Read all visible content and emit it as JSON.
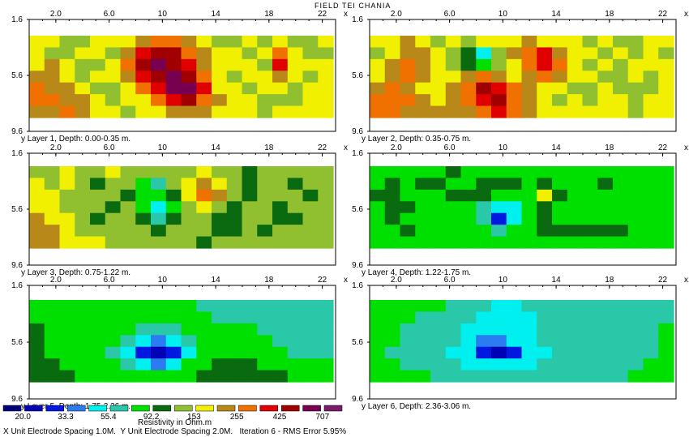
{
  "figure_title": "FIELD TEI CHANIA",
  "axis_letter_x": "x",
  "axis_letter_y": "y",
  "footer": {
    "x_spacing": "X Unit Electrode Spacing 1.0M.",
    "y_spacing": "Y Unit Electrode Spacing 2.0M.",
    "iteration": "Iteration 6 - RMS Error 5.95%"
  },
  "legend": {
    "units_label": "Resistivity in Ohm.m",
    "swatch_colors": [
      "#00007a",
      "#0000b4",
      "#0018e0",
      "#2a7cf0",
      "#00f0f0",
      "#28c8a8",
      "#00e000",
      "#0a6a10",
      "#90c030",
      "#f0f000",
      "#b88818",
      "#f07000",
      "#e00000",
      "#a00000",
      "#780050",
      "#7a1a6a"
    ],
    "tick_labels": [
      "20.0",
      "33.3",
      "55.4",
      "92.2",
      "153",
      "255",
      "425",
      "707"
    ]
  },
  "chart_data": [
    {
      "type": "heatmap",
      "caption": "Layer 1, Depth: 0.00-0.35 m.",
      "x_ticks": [
        "2.0",
        "6.0",
        "10",
        "14",
        "18",
        "22"
      ],
      "y_ticks": [
        "1.6",
        "5.6",
        "9.6"
      ],
      "x_range": [
        0,
        23
      ],
      "y_range": [
        1.6,
        9.6
      ],
      "grid": [
        [
          9,
          9,
          8,
          8,
          9,
          9,
          9,
          10,
          11,
          11,
          10,
          9,
          8,
          8,
          9,
          8,
          9,
          8,
          8,
          9
        ],
        [
          9,
          8,
          8,
          9,
          9,
          8,
          10,
          12,
          13,
          13,
          11,
          10,
          9,
          9,
          8,
          9,
          11,
          9,
          8,
          8
        ],
        [
          9,
          10,
          9,
          8,
          8,
          9,
          11,
          13,
          14,
          13,
          12,
          10,
          9,
          9,
          9,
          8,
          12,
          9,
          9,
          9
        ],
        [
          10,
          10,
          9,
          8,
          9,
          9,
          10,
          12,
          13,
          14,
          13,
          11,
          9,
          8,
          9,
          9,
          10,
          9,
          8,
          9
        ],
        [
          11,
          10,
          10,
          9,
          8,
          8,
          9,
          11,
          12,
          14,
          14,
          12,
          9,
          9,
          8,
          9,
          9,
          8,
          9,
          9
        ],
        [
          11,
          11,
          10,
          10,
          9,
          8,
          9,
          9,
          11,
          12,
          13,
          11,
          10,
          9,
          9,
          8,
          8,
          8,
          9,
          9
        ],
        [
          10,
          10,
          11,
          10,
          9,
          9,
          8,
          9,
          9,
          10,
          10,
          10,
          9,
          9,
          9,
          8,
          9,
          9,
          9,
          9
        ]
      ]
    },
    {
      "type": "heatmap",
      "caption": "Layer 2, Depth: 0.35-0.75 m.",
      "x_ticks": [
        "2.0",
        "6.0",
        "10",
        "14",
        "18",
        "22"
      ],
      "y_ticks": [
        "1.6",
        "5.6",
        "9.6"
      ],
      "x_range": [
        0,
        23
      ],
      "y_range": [
        1.6,
        9.6
      ],
      "grid": [
        [
          9,
          9,
          10,
          9,
          8,
          9,
          8,
          9,
          9,
          9,
          10,
          9,
          9,
          9,
          8,
          9,
          8,
          8,
          9,
          9
        ],
        [
          8,
          9,
          10,
          10,
          9,
          8,
          7,
          4,
          8,
          10,
          11,
          12,
          10,
          9,
          9,
          8,
          9,
          8,
          9,
          8
        ],
        [
          9,
          10,
          11,
          10,
          9,
          8,
          7,
          6,
          8,
          9,
          11,
          12,
          11,
          9,
          8,
          9,
          8,
          9,
          9,
          9
        ],
        [
          9,
          10,
          11,
          10,
          9,
          9,
          10,
          11,
          10,
          9,
          10,
          11,
          10,
          9,
          9,
          8,
          8,
          9,
          8,
          9
        ],
        [
          10,
          11,
          10,
          9,
          9,
          10,
          11,
          13,
          12,
          11,
          10,
          9,
          9,
          8,
          8,
          9,
          8,
          8,
          8,
          9
        ],
        [
          11,
          11,
          11,
          10,
          9,
          10,
          11,
          12,
          13,
          11,
          10,
          9,
          8,
          9,
          8,
          9,
          9,
          8,
          9,
          9
        ],
        [
          11,
          11,
          10,
          10,
          10,
          10,
          10,
          11,
          12,
          11,
          10,
          9,
          9,
          9,
          9,
          9,
          9,
          8,
          9,
          9
        ]
      ]
    },
    {
      "type": "heatmap",
      "caption": "Layer 3, Depth: 0.75-1.22 m.",
      "x_ticks": [
        "2.0",
        "6.0",
        "10",
        "14",
        "18",
        "22"
      ],
      "y_ticks": [
        "1.6",
        "5.6",
        "9.6"
      ],
      "x_range": [
        0,
        23
      ],
      "y_range": [
        1.6,
        9.6
      ],
      "grid": [
        [
          8,
          8,
          9,
          8,
          8,
          9,
          8,
          8,
          8,
          8,
          8,
          9,
          8,
          8,
          7,
          8,
          8,
          8,
          8,
          8
        ],
        [
          9,
          8,
          9,
          8,
          7,
          8,
          8,
          6,
          5,
          8,
          9,
          10,
          9,
          8,
          7,
          8,
          8,
          7,
          8,
          8
        ],
        [
          9,
          9,
          8,
          8,
          8,
          8,
          7,
          6,
          6,
          7,
          9,
          11,
          10,
          8,
          7,
          8,
          8,
          8,
          7,
          8
        ],
        [
          9,
          9,
          8,
          8,
          8,
          7,
          8,
          6,
          4,
          6,
          8,
          9,
          8,
          7,
          8,
          8,
          7,
          8,
          8,
          8
        ],
        [
          10,
          9,
          9,
          8,
          7,
          8,
          8,
          7,
          5,
          7,
          8,
          8,
          7,
          7,
          8,
          8,
          7,
          7,
          8,
          8
        ],
        [
          10,
          10,
          9,
          8,
          8,
          8,
          8,
          8,
          7,
          8,
          8,
          8,
          7,
          7,
          8,
          7,
          8,
          8,
          8,
          8
        ],
        [
          10,
          10,
          9,
          9,
          9,
          8,
          8,
          8,
          8,
          8,
          8,
          7,
          8,
          8,
          8,
          8,
          8,
          8,
          8,
          8
        ]
      ]
    },
    {
      "type": "heatmap",
      "caption": "Layer 4, Depth: 1.22-1.75 m.",
      "x_ticks": [
        "2.0",
        "6.0",
        "10",
        "14",
        "18",
        "22"
      ],
      "y_ticks": [
        "1.6",
        "5.6",
        "9.6"
      ],
      "x_range": [
        0,
        23
      ],
      "y_range": [
        1.6,
        9.6
      ],
      "grid": [
        [
          6,
          6,
          6,
          6,
          6,
          7,
          6,
          6,
          6,
          6,
          6,
          6,
          6,
          6,
          6,
          6,
          6,
          6,
          6,
          6
        ],
        [
          6,
          7,
          6,
          7,
          7,
          6,
          6,
          7,
          7,
          7,
          6,
          7,
          6,
          6,
          6,
          7,
          6,
          6,
          6,
          6
        ],
        [
          7,
          7,
          6,
          6,
          6,
          7,
          7,
          7,
          6,
          6,
          6,
          9,
          7,
          6,
          6,
          6,
          6,
          6,
          6,
          6
        ],
        [
          6,
          7,
          7,
          6,
          6,
          6,
          6,
          5,
          4,
          4,
          6,
          7,
          6,
          6,
          6,
          6,
          6,
          6,
          6,
          6
        ],
        [
          6,
          7,
          6,
          6,
          6,
          6,
          6,
          5,
          2,
          4,
          6,
          7,
          6,
          6,
          6,
          6,
          6,
          6,
          6,
          6
        ],
        [
          6,
          6,
          7,
          6,
          6,
          6,
          6,
          6,
          5,
          6,
          6,
          7,
          7,
          7,
          7,
          7,
          7,
          6,
          6,
          6
        ],
        [
          6,
          6,
          6,
          6,
          6,
          6,
          6,
          6,
          6,
          6,
          6,
          6,
          6,
          6,
          6,
          6,
          6,
          6,
          6,
          6
        ]
      ]
    },
    {
      "type": "heatmap",
      "caption": "Layer 5, Depth: 1.75-2.36 m.",
      "x_ticks": [
        "2.0",
        "6.0",
        "10",
        "14",
        "18",
        "22"
      ],
      "y_ticks": [
        "1.6",
        "5.6",
        "9.6"
      ],
      "x_range": [
        0,
        23
      ],
      "y_range": [
        1.6,
        9.6
      ],
      "grid": [
        [
          6,
          6,
          6,
          6,
          6,
          6,
          6,
          6,
          6,
          6,
          6,
          5,
          5,
          5,
          5,
          5,
          5,
          5,
          5,
          5
        ],
        [
          6,
          6,
          6,
          6,
          6,
          6,
          6,
          6,
          6,
          6,
          6,
          6,
          5,
          5,
          5,
          5,
          5,
          5,
          5,
          5
        ],
        [
          7,
          6,
          6,
          6,
          6,
          6,
          6,
          5,
          5,
          5,
          6,
          6,
          6,
          6,
          6,
          5,
          5,
          5,
          5,
          5
        ],
        [
          7,
          6,
          6,
          6,
          6,
          6,
          5,
          4,
          3,
          4,
          5,
          6,
          6,
          6,
          6,
          6,
          5,
          5,
          5,
          5
        ],
        [
          7,
          6,
          6,
          6,
          6,
          5,
          4,
          2,
          1,
          2,
          4,
          6,
          6,
          6,
          6,
          6,
          6,
          5,
          5,
          5
        ],
        [
          7,
          7,
          6,
          6,
          6,
          6,
          5,
          4,
          3,
          4,
          6,
          6,
          7,
          7,
          7,
          6,
          6,
          6,
          6,
          6
        ],
        [
          7,
          7,
          7,
          6,
          6,
          6,
          6,
          6,
          6,
          6,
          6,
          7,
          7,
          7,
          7,
          7,
          7,
          6,
          6,
          6
        ]
      ]
    },
    {
      "type": "heatmap",
      "caption": "Layer 6, Depth: 2.36-3.06 m.",
      "x_ticks": [
        "2.0",
        "6.0",
        "10",
        "14",
        "18",
        "22"
      ],
      "y_ticks": [
        "1.6",
        "5.6",
        "9.6"
      ],
      "x_range": [
        0,
        23
      ],
      "y_range": [
        1.6,
        9.6
      ],
      "grid": [
        [
          6,
          6,
          6,
          6,
          6,
          5,
          5,
          5,
          4,
          4,
          5,
          5,
          5,
          5,
          5,
          5,
          5,
          5,
          5,
          5
        ],
        [
          6,
          6,
          6,
          5,
          5,
          5,
          5,
          4,
          4,
          4,
          4,
          5,
          5,
          5,
          5,
          5,
          5,
          5,
          5,
          5
        ],
        [
          6,
          6,
          5,
          5,
          5,
          5,
          4,
          4,
          4,
          4,
          4,
          5,
          5,
          5,
          5,
          5,
          5,
          5,
          5,
          6
        ],
        [
          6,
          6,
          5,
          5,
          5,
          5,
          4,
          3,
          3,
          4,
          4,
          5,
          5,
          5,
          5,
          5,
          5,
          5,
          5,
          6
        ],
        [
          6,
          5,
          5,
          5,
          5,
          4,
          4,
          2,
          1,
          2,
          4,
          4,
          5,
          5,
          5,
          5,
          5,
          5,
          5,
          6
        ],
        [
          6,
          6,
          5,
          5,
          5,
          5,
          4,
          4,
          4,
          4,
          4,
          5,
          5,
          5,
          5,
          5,
          5,
          5,
          6,
          6
        ],
        [
          6,
          6,
          6,
          6,
          5,
          5,
          5,
          5,
          5,
          5,
          5,
          5,
          5,
          5,
          5,
          5,
          5,
          6,
          6,
          6
        ]
      ]
    }
  ]
}
